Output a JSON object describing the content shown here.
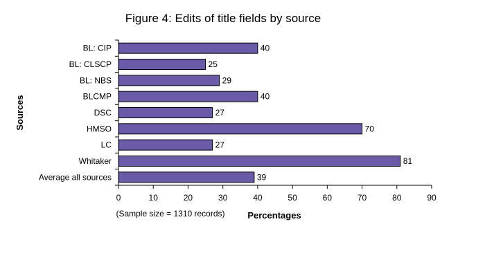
{
  "chart_data": {
    "type": "bar",
    "orientation": "horizontal",
    "title": "Figure 4: Edits of title fields by source",
    "xlabel": "Percentages",
    "ylabel": "Sources",
    "note": "(Sample size = 1310 records)",
    "categories": [
      "BL: CIP",
      "BL: CLSCP",
      "BL: NBS",
      "BLCMP",
      "DSC",
      "HMSO",
      "LC",
      "Whitaker",
      "Average all sources"
    ],
    "values": [
      40,
      25,
      29,
      40,
      27,
      70,
      27,
      81,
      39
    ],
    "data_labels": [
      "40",
      "25",
      "29",
      "40",
      "27",
      "70",
      "27",
      "81",
      "39"
    ],
    "xlim": [
      0,
      90
    ],
    "xticks": [
      "0",
      "10",
      "20",
      "30",
      "40",
      "50",
      "60",
      "70",
      "80",
      "90"
    ],
    "grid": false,
    "legend": "none",
    "bar_color": "#6a5aa8"
  }
}
